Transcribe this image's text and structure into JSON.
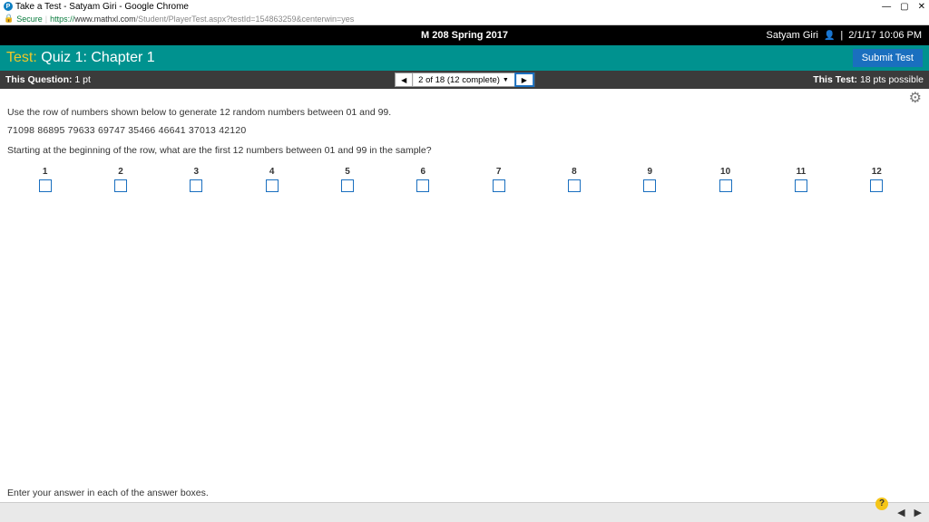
{
  "chrome": {
    "tab_title": "Take a Test - Satyam Giri - Google Chrome",
    "min": "—",
    "max": "▢",
    "close": "✕",
    "secure": "Secure",
    "url_https": "https://",
    "url_domain": "www.mathxl.com",
    "url_path": "/Student/PlayerTest.aspx?testId=154863259&centerwin=yes"
  },
  "header": {
    "course": "M 208 Spring 2017",
    "user": "Satyam Giri",
    "timestamp": "2/1/17 10:06 PM"
  },
  "test_bar": {
    "label": "Test:",
    "title": " Quiz 1: Chapter 1",
    "submit": "Submit Test"
  },
  "qbar": {
    "left_label": "This Question:",
    "left_value": " 1 pt",
    "progress": "2 of 18 (12 complete)",
    "right_label": "This Test:",
    "right_value": " 18 pts possible"
  },
  "content": {
    "instruction": "Use the row of numbers shown below to generate 12 random numbers between 01 and 99.",
    "row_numbers": "71098  86895  79633  69747  35466  46641  37013  42120",
    "subquestion": "Starting at the beginning of the row, what are the first 12 numbers between 01 and 99 in the sample?",
    "input_labels": [
      "1",
      "2",
      "3",
      "4",
      "5",
      "6",
      "7",
      "8",
      "9",
      "10",
      "11",
      "12"
    ],
    "hint": "Enter your answer in each of the answer boxes."
  }
}
